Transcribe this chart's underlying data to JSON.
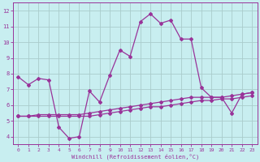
{
  "xlabel": "Windchill (Refroidissement éolien,°C)",
  "background_color": "#c8eef0",
  "grid_color": "#aacccc",
  "line_color": "#993399",
  "xlim_min": -0.5,
  "xlim_max": 23.5,
  "ylim_min": 3.5,
  "ylim_max": 12.5,
  "xticks": [
    0,
    1,
    2,
    3,
    4,
    5,
    6,
    7,
    8,
    9,
    10,
    11,
    12,
    13,
    14,
    15,
    16,
    17,
    18,
    19,
    20,
    21,
    22,
    23
  ],
  "yticks": [
    4,
    5,
    6,
    7,
    8,
    9,
    10,
    11,
    12
  ],
  "series_zigzag_x": [
    0,
    1,
    2,
    3,
    4,
    5,
    6,
    7,
    8,
    9,
    10,
    11,
    12,
    13,
    14,
    15,
    16,
    17,
    18,
    19,
    20,
    21,
    22,
    23
  ],
  "series_zigzag_y": [
    7.8,
    7.3,
    7.7,
    7.6,
    4.6,
    3.9,
    4.0,
    6.9,
    6.2,
    7.9,
    9.5,
    9.1,
    11.3,
    11.8,
    11.2,
    11.4,
    10.2,
    10.2,
    7.1,
    6.5,
    6.5,
    5.5,
    6.7,
    6.8
  ],
  "series_smooth1_x": [
    0,
    1,
    2,
    3,
    4,
    5,
    6,
    7,
    8,
    9,
    10,
    11,
    12,
    13,
    14,
    15,
    16,
    17,
    18,
    19,
    20,
    21,
    22,
    23
  ],
  "series_smooth1_y": [
    5.3,
    5.3,
    5.4,
    5.4,
    5.4,
    5.4,
    5.4,
    5.5,
    5.6,
    5.7,
    5.8,
    5.9,
    6.0,
    6.1,
    6.2,
    6.3,
    6.4,
    6.5,
    6.5,
    6.5,
    6.5,
    6.6,
    6.7,
    6.8
  ],
  "series_smooth2_x": [
    0,
    1,
    2,
    3,
    4,
    5,
    6,
    7,
    8,
    9,
    10,
    11,
    12,
    13,
    14,
    15,
    16,
    17,
    18,
    19,
    20,
    21,
    22,
    23
  ],
  "series_smooth2_y": [
    5.3,
    5.3,
    5.3,
    5.3,
    5.3,
    5.3,
    5.3,
    5.3,
    5.4,
    5.5,
    5.6,
    5.7,
    5.8,
    5.9,
    5.9,
    6.0,
    6.1,
    6.2,
    6.3,
    6.3,
    6.4,
    6.4,
    6.5,
    6.6
  ]
}
